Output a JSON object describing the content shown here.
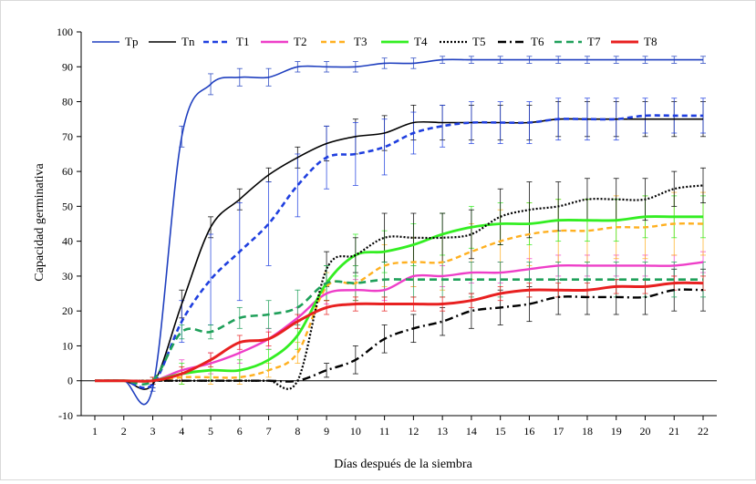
{
  "chart_data": {
    "type": "line",
    "title": "",
    "xlabel": "Días después de la siembra",
    "ylabel": "Capacidad germinativa",
    "xlim": [
      1,
      22
    ],
    "ylim": [
      -10,
      100
    ],
    "yticks": [
      -10,
      0,
      10,
      20,
      30,
      40,
      50,
      60,
      70,
      80,
      90,
      100
    ],
    "categories": [
      "1",
      "2",
      "3",
      "4",
      "5",
      "6",
      "7",
      "8",
      "9",
      "10",
      "11",
      "12",
      "13",
      "14",
      "15",
      "16",
      "17",
      "18",
      "19",
      "20",
      "21",
      "22"
    ],
    "x": [
      1,
      2,
      3,
      4,
      5,
      6,
      7,
      8,
      9,
      10,
      11,
      12,
      13,
      14,
      15,
      16,
      17,
      18,
      19,
      20,
      21,
      22
    ],
    "grid": false,
    "legend_position": "top-left",
    "series": [
      {
        "name": "Tp",
        "color": "#1f3fbf",
        "dash": "solid",
        "width": 1.6,
        "values": [
          0,
          0,
          -2,
          70,
          85,
          87,
          87,
          90,
          90,
          90,
          91,
          91,
          92,
          92,
          92,
          92,
          92,
          92,
          92,
          92,
          92,
          92
        ],
        "errors": [
          0,
          0,
          1,
          3,
          3,
          2.5,
          2.5,
          1.5,
          1.5,
          1.5,
          1.5,
          1.5,
          1,
          1,
          1,
          1,
          1,
          1,
          1,
          1,
          1,
          1
        ]
      },
      {
        "name": "Tn",
        "color": "#000000",
        "dash": "solid",
        "width": 1.6,
        "values": [
          0,
          0,
          -1,
          22,
          44,
          52,
          59,
          64,
          68,
          70,
          71,
          74,
          74,
          74,
          74,
          74,
          75,
          75,
          75,
          75,
          75,
          75
        ],
        "errors": [
          0,
          0,
          1,
          4,
          3,
          3,
          2,
          3,
          5,
          5,
          5,
          5,
          5,
          5,
          5,
          5,
          5,
          5,
          5,
          5,
          5,
          5
        ]
      },
      {
        "name": "T1",
        "color": "#1f3fdf",
        "dash": "6,4",
        "width": 2.6,
        "values": [
          0,
          0,
          -1,
          17,
          29,
          37,
          45,
          56,
          64,
          65,
          67,
          71,
          73,
          74,
          74,
          74,
          75,
          75,
          75,
          76,
          76,
          76
        ],
        "errors": [
          0,
          0,
          1,
          6,
          13,
          14,
          12,
          9,
          9,
          9,
          8,
          6,
          6,
          6,
          6,
          6,
          6,
          6,
          6,
          5,
          5,
          5
        ]
      },
      {
        "name": "T2",
        "color": "#ee3ec8",
        "dash": "solid",
        "width": 2.4,
        "values": [
          0,
          0,
          0,
          3,
          5,
          8,
          12,
          18,
          25,
          26,
          26,
          30,
          30,
          31,
          31,
          32,
          33,
          33,
          33,
          33,
          33,
          34
        ],
        "errors": [
          0,
          0,
          1,
          3,
          3,
          3,
          3,
          3,
          3,
          3,
          3,
          3,
          3,
          3,
          3,
          3,
          3,
          3,
          3,
          3,
          3,
          3
        ]
      },
      {
        "name": "T3",
        "color": "#ffb020",
        "dash": "6,4",
        "width": 2.4,
        "values": [
          0,
          0,
          0,
          1,
          1,
          1,
          3,
          8,
          27,
          28,
          33,
          34,
          34,
          37,
          40,
          42,
          43,
          43,
          44,
          44,
          45,
          45
        ],
        "errors": [
          0,
          0,
          1,
          2,
          2,
          2,
          2,
          3,
          4,
          5,
          6,
          7,
          8,
          8,
          9,
          9,
          9,
          9,
          9,
          9,
          9,
          9
        ]
      },
      {
        "name": "T4",
        "color": "#33ee22",
        "dash": "solid",
        "width": 2.8,
        "values": [
          0,
          0,
          0,
          2,
          3,
          3,
          6,
          13,
          28,
          36,
          37,
          39,
          42,
          44,
          45,
          45,
          46,
          46,
          46,
          47,
          47,
          47
        ],
        "errors": [
          0,
          0,
          1,
          3,
          3,
          3,
          3,
          4,
          5,
          6,
          6,
          6,
          6,
          6,
          6,
          6,
          6,
          6,
          6,
          6,
          6,
          6
        ]
      },
      {
        "name": "T5",
        "color": "#000000",
        "dash": "2,2",
        "width": 2.2,
        "values": [
          0,
          0,
          0,
          0,
          0,
          0,
          0,
          0,
          32,
          36,
          41,
          41,
          41,
          42,
          47,
          49,
          50,
          52,
          52,
          52,
          55,
          56
        ],
        "errors": [
          0,
          0,
          0,
          0,
          0,
          0,
          0,
          0,
          5,
          5,
          7,
          7,
          7,
          7,
          8,
          8,
          7,
          6,
          6,
          6,
          5,
          5
        ]
      },
      {
        "name": "T6",
        "color": "#000000",
        "dash": "9,4,2,4",
        "width": 2.4,
        "values": [
          0,
          0,
          0,
          0,
          0,
          0,
          0,
          0,
          3,
          6,
          12,
          15,
          17,
          20,
          21,
          22,
          24,
          24,
          24,
          24,
          26,
          26
        ],
        "errors": [
          0,
          0,
          0,
          0,
          0,
          0,
          0,
          0,
          2,
          4,
          4,
          4,
          4,
          5,
          5,
          5,
          5,
          5,
          5,
          5,
          6,
          6
        ]
      },
      {
        "name": "T7",
        "color": "#1fa05a",
        "dash": "8,5",
        "width": 2.6,
        "values": [
          0,
          0,
          0,
          14,
          14,
          18,
          19,
          21,
          28,
          28,
          29,
          29,
          29,
          29,
          29,
          29,
          29,
          29,
          29,
          29,
          29,
          29
        ],
        "errors": [
          0,
          0,
          1,
          2,
          2,
          3,
          4,
          5,
          5,
          5,
          5,
          5,
          5,
          5,
          5,
          5,
          5,
          5,
          5,
          5,
          5,
          5
        ]
      },
      {
        "name": "T8",
        "color": "#e82020",
        "dash": "solid",
        "width": 3,
        "values": [
          0,
          0,
          0,
          2,
          6,
          11,
          12,
          17,
          21,
          22,
          22,
          22,
          22,
          23,
          25,
          26,
          26,
          26,
          27,
          27,
          28,
          28
        ],
        "errors": [
          0,
          0,
          1,
          2,
          2,
          2,
          2,
          2,
          2,
          2,
          2,
          2,
          2,
          2,
          2,
          2,
          2,
          2,
          2,
          2,
          2,
          2
        ]
      }
    ]
  }
}
